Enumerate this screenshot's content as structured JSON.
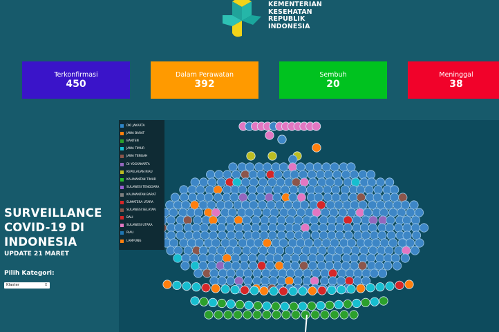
{
  "header": {
    "logo_lines": [
      "KEMENTERIAN",
      "KESEHATAN",
      "REPUBLIK",
      "INDONESIA"
    ]
  },
  "stats": [
    {
      "label": "Terkonfirmasi",
      "value": "450",
      "color": "#3a14c9"
    },
    {
      "label": "Dalam Perawatan",
      "value": "392",
      "color": "#ff9a00"
    },
    {
      "label": "Sembuh",
      "value": "20",
      "color": "#00c21f"
    },
    {
      "label": "Meninggal",
      "value": "38",
      "color": "#f1022a"
    }
  ],
  "sidebar": {
    "title_lines": [
      "SURVEILLANCE",
      "COVID-19 DI",
      "INDONESIA"
    ],
    "update": "UPDATE 21 MARET",
    "category_label": "Pilih Kategori:",
    "category_value": "Klaster"
  },
  "legend": [
    {
      "label": "DKI JAKARTA",
      "color": "#2f86c9"
    },
    {
      "label": "JAWA BARAT",
      "color": "#ff7f0e"
    },
    {
      "label": "BANTEN",
      "color": "#2ca02c"
    },
    {
      "label": "JAWA TIMUR",
      "color": "#17becf"
    },
    {
      "label": "JAWA TENGAH",
      "color": "#8c564b"
    },
    {
      "label": "DI YOGYAKARTA",
      "color": "#9467bd"
    },
    {
      "label": "KEPULAUAN RIAU",
      "color": "#bcbd22"
    },
    {
      "label": "KALIMANTAN TIMUR",
      "color": "#2bbf2b"
    },
    {
      "label": "SULAWESI TENGGARA",
      "color": "#9a5fd0"
    },
    {
      "label": "KALIMANTAN BARAT",
      "color": "#7f7f7f"
    },
    {
      "label": "SUMATERA UTARA",
      "color": "#d62728"
    },
    {
      "label": "SULAWESI SELATAN",
      "color": "#8c564b"
    },
    {
      "label": "BALI",
      "color": "#d62728"
    },
    {
      "label": "SULAWESI UTARA",
      "color": "#e377c2"
    },
    {
      "label": "RIAU",
      "color": "#1f77b4"
    },
    {
      "label": "LAMPUNG",
      "color": "#ff7f0e"
    }
  ]
}
